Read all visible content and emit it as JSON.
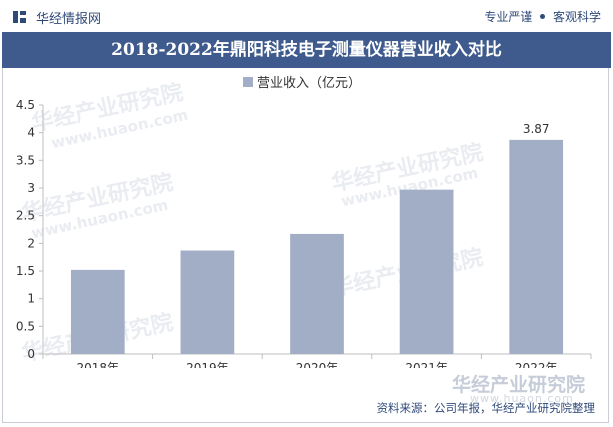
{
  "header": {
    "brand": "华经情报网",
    "slogan_left": "专业严谨",
    "slogan_right": "客观科学"
  },
  "title": "2018-2022年鼎阳科技电子测量仪器营业收入对比",
  "source": "资料来源：公司年报，华经产业研究院整理",
  "watermark": {
    "name": "华经产业研究院",
    "url": "www.huaon.com"
  },
  "colors": {
    "title_bg": "#3f5a8c",
    "bar": "#a2adc6",
    "text": "#2f4a7a"
  },
  "chart_data": {
    "type": "bar",
    "categories": [
      "2018年",
      "2019年",
      "2020年",
      "2021年",
      "2022年"
    ],
    "series": [
      {
        "name": "营业收入（亿元）",
        "values": [
          1.52,
          1.87,
          2.17,
          2.97,
          3.87
        ]
      }
    ],
    "data_labels": [
      null,
      null,
      null,
      null,
      "3.87"
    ],
    "ylim": [
      0,
      4.5
    ],
    "yticks": [
      "0",
      "0.5",
      "1",
      "1.5",
      "2",
      "2.5",
      "3",
      "3.5",
      "4",
      "4.5"
    ],
    "grid": false,
    "legend_position": "top-center"
  }
}
